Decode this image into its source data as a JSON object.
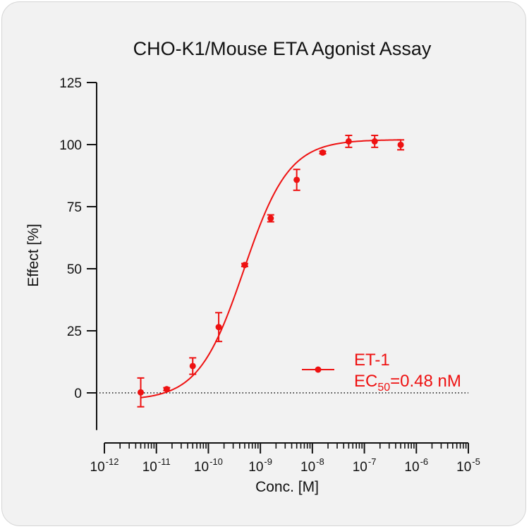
{
  "chart_data": {
    "type": "scatter",
    "title": "CHO-K1/Mouse ETA Agonist Assay",
    "xlabel": "Conc. [M]",
    "ylabel": "Effect  [%]",
    "xscale": "log",
    "xlim": [
      1e-12,
      1e-05
    ],
    "ylim": [
      -15,
      125
    ],
    "yticks": [
      0,
      25,
      50,
      75,
      100,
      125
    ],
    "xticks": [
      {
        "base": "10",
        "exp": "-12",
        "value": 1e-12
      },
      {
        "base": "10",
        "exp": "-11",
        "value": 1e-11
      },
      {
        "base": "10",
        "exp": "-10",
        "value": 1e-10
      },
      {
        "base": "10",
        "exp": "-9",
        "value": 1e-09
      },
      {
        "base": "10",
        "exp": "-8",
        "value": 1e-08
      },
      {
        "base": "10",
        "exp": "-7",
        "value": 1e-07
      },
      {
        "base": "10",
        "exp": "-6",
        "value": 1e-06
      },
      {
        "base": "10",
        "exp": "-5",
        "value": 1e-05
      }
    ],
    "baseline": 0,
    "series": [
      {
        "name": "ET-1",
        "color": "#ee1111",
        "x": [
          5e-12,
          1.58e-11,
          5e-11,
          1.58e-10,
          5e-10,
          1.58e-09,
          5e-09,
          1.58e-08,
          5e-08,
          1.58e-07,
          5e-07
        ],
        "y": [
          0.2,
          1.5,
          10.8,
          26.5,
          51.5,
          70.3,
          85.8,
          96.8,
          101.3,
          101.3,
          99.9
        ],
        "error": [
          5.8,
          0.6,
          3.3,
          5.8,
          0.6,
          1.4,
          4.2,
          0.5,
          2.4,
          2.4,
          2.0
        ],
        "fit": {
          "bottom": -3,
          "top": 102,
          "ec50": 4.8e-10,
          "hill": 1.0
        }
      }
    ],
    "legend": {
      "placement": "lower-right",
      "label": "ET-1",
      "ec50_prefix": "EC",
      "ec50_sub": "50",
      "ec50_suffix": "=0.48 nM"
    }
  }
}
